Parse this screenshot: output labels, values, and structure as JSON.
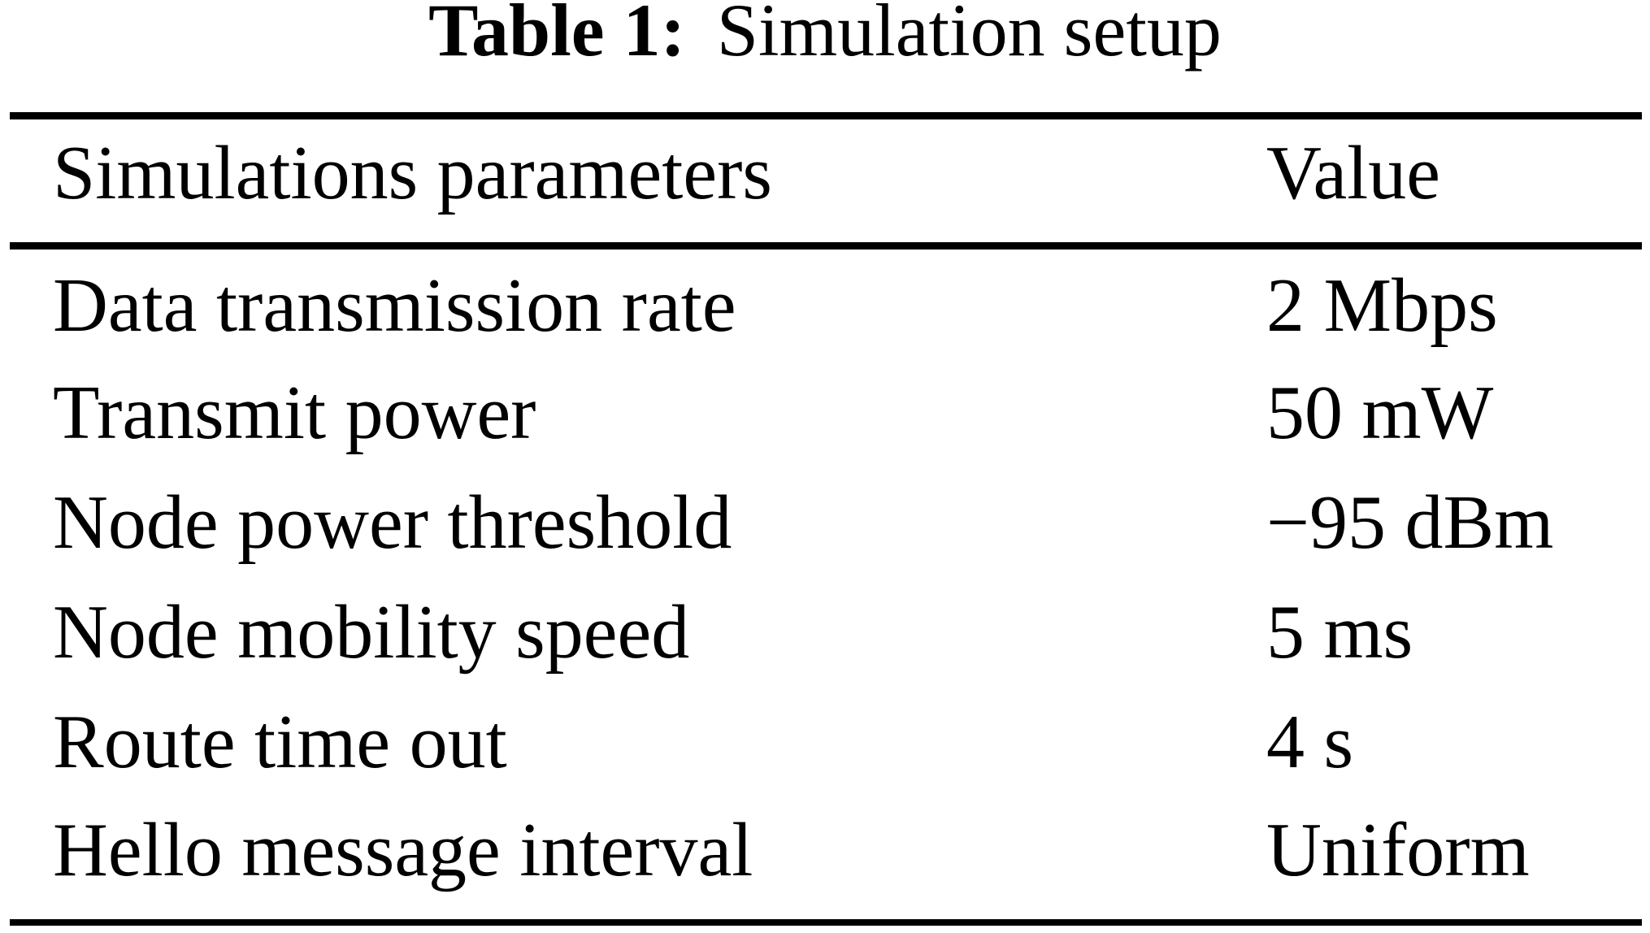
{
  "title": {
    "label": "Table 1:",
    "text": "Simulation setup"
  },
  "table": {
    "columns": {
      "parameters": "Simulations parameters",
      "value": "Value"
    },
    "rows": [
      {
        "param": "Data transmission rate",
        "value": "2 Mbps"
      },
      {
        "param": "Transmit power",
        "value": "50 mW"
      },
      {
        "param": "Node power threshold",
        "value": "−95 dBm"
      },
      {
        "param": "Node mobility speed",
        "value": "5 ms"
      },
      {
        "param": "Route time out",
        "value": "4 s"
      },
      {
        "param": "Hello message interval",
        "value": "Uniform"
      }
    ]
  },
  "colors": {
    "text": "#000000",
    "background": "#ffffff",
    "rule": "#000000"
  }
}
